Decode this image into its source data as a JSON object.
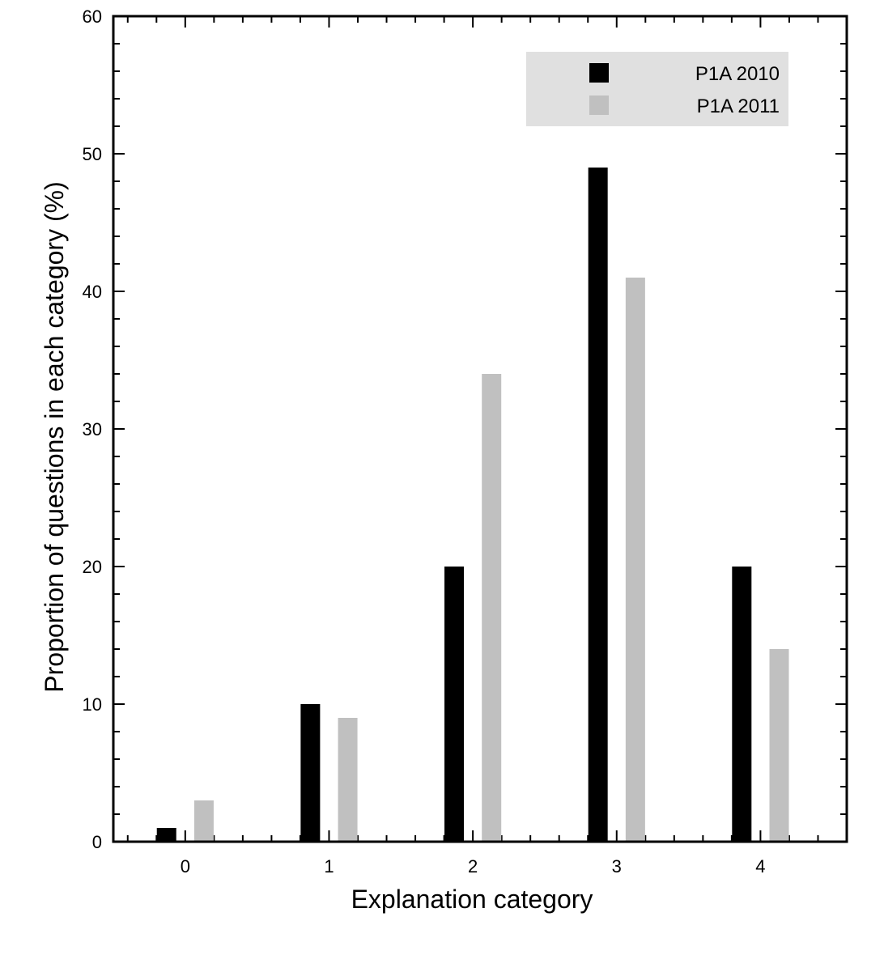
{
  "chart_data": {
    "type": "bar",
    "title": "",
    "xlabel": "Explanation category",
    "ylabel": "Proportion of questions in each category (%)",
    "categories": [
      "0",
      "1",
      "2",
      "3",
      "4"
    ],
    "ylim": [
      0,
      60
    ],
    "xlim": [
      -0.5,
      4.6
    ],
    "y_ticks": [
      0,
      10,
      20,
      30,
      40,
      50,
      60
    ],
    "y_minor_step": 2,
    "x_minor_step": 0.2,
    "legend_position": "top-right",
    "series": [
      {
        "name": "P1A 2010",
        "color": "#000000",
        "values": [
          1,
          10,
          20,
          49,
          20
        ]
      },
      {
        "name": "P1A 2011",
        "color": "#c0c0c0",
        "values": [
          3,
          9,
          34,
          41,
          14
        ]
      }
    ],
    "legend_background": "#e0e0e0"
  }
}
